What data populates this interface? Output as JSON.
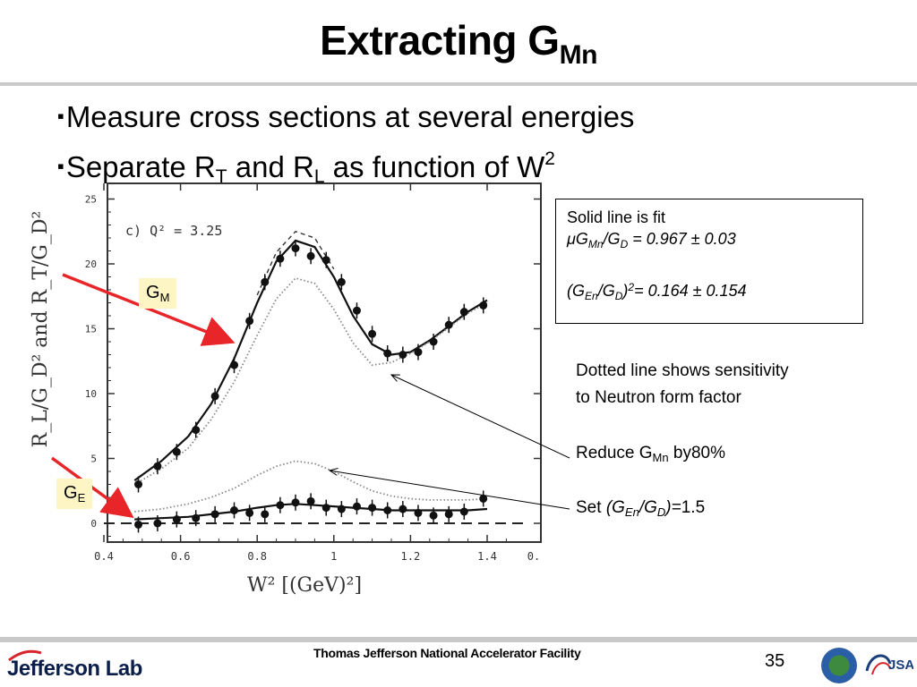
{
  "slide": {
    "title_main": "Extracting G",
    "title_sub": "Mn",
    "bullets": [
      {
        "marker": "▪",
        "text": "Measure cross sections  at several energies"
      },
      {
        "marker": "▪",
        "pre": "Separate R",
        "sub1": "T",
        "mid": " and R",
        "sub2": "L",
        "post": " as function of W",
        "sup": "2"
      }
    ]
  },
  "labels": {
    "gm_main": "G",
    "gm_sub": "M",
    "ge_main": "G",
    "ge_sub": "E"
  },
  "fit_box": {
    "line1": "Solid line is fit",
    "mu": "μG",
    "mn": "Mn",
    "slash": "/G",
    "d": "D",
    "val1": " = 0.967 ± 0.03",
    "open": "(G",
    "en": "En",
    "slash2": "/G",
    "d2": "D",
    "close": ")",
    "sq": "2",
    "val2": "= 0.164 ± 0.154"
  },
  "notes": {
    "dotted_1": "Dotted line shows sensitivity",
    "dotted_2": "to Neutron form factor",
    "reduce_pre": "Reduce G",
    "reduce_sub": "Mn",
    "reduce_post": " by80%",
    "set_pre": "Set  ",
    "set_open": "(G",
    "set_en": "En",
    "set_slash": "/G",
    "set_d": "D",
    "set_close": ")=",
    "set_val": "1.5"
  },
  "footer": {
    "org": "Thomas Jefferson National Accelerator Facility",
    "page": "35",
    "logo_text": "Jefferson Lab",
    "jsa_text": "JSA"
  },
  "colors": {
    "arrow": "#e8262a",
    "label_bg": "#fdf6c4",
    "rule": "#c9c9c9"
  },
  "chart_data": {
    "type": "scatter",
    "panel_label": "c) Q² = 3.25",
    "xlabel": "W² [(GeV)²]",
    "ylabel": "R_L/G_D² and R_T/G_D²",
    "xlim": [
      0.4,
      1.5
    ],
    "ylim": [
      -2,
      26
    ],
    "x_ticks": [
      0.4,
      0.6,
      0.8,
      1,
      1.2,
      1.4
    ],
    "x_tick_labels": [
      "0.4",
      "0.6",
      "0.8",
      "1",
      "1.2",
      "1.4"
    ],
    "extra_x_tick_label": "0.",
    "y_ticks": [
      0,
      5,
      10,
      15,
      20,
      25
    ],
    "y_tick_labels": [
      "0",
      "5",
      "10",
      "15",
      "20",
      "25"
    ],
    "series": [
      {
        "role": "RT data",
        "x": [
          0.49,
          0.54,
          0.59,
          0.64,
          0.69,
          0.74,
          0.78,
          0.82,
          0.86,
          0.9,
          0.94,
          0.98,
          1.02,
          1.06,
          1.1,
          1.14,
          1.18,
          1.22,
          1.26,
          1.3,
          1.34,
          1.39
        ],
        "y": [
          3.0,
          4.4,
          5.5,
          7.2,
          9.8,
          12.2,
          15.6,
          18.6,
          20.4,
          21.2,
          20.6,
          20.3,
          18.6,
          16.4,
          14.6,
          13.1,
          13.0,
          13.2,
          14.0,
          15.3,
          16.3,
          16.8
        ]
      },
      {
        "role": "RL data",
        "x": [
          0.49,
          0.54,
          0.59,
          0.64,
          0.69,
          0.74,
          0.78,
          0.82,
          0.86,
          0.9,
          0.94,
          0.98,
          1.02,
          1.06,
          1.1,
          1.14,
          1.18,
          1.22,
          1.26,
          1.3,
          1.34,
          1.39
        ],
        "y": [
          -0.1,
          0.0,
          0.3,
          0.4,
          0.7,
          1.0,
          0.8,
          0.7,
          1.4,
          1.6,
          1.7,
          1.2,
          1.1,
          1.3,
          1.2,
          1.0,
          1.1,
          0.8,
          0.6,
          0.7,
          0.9,
          1.9
        ]
      },
      {
        "role": "RT fit (solid)",
        "x": [
          0.48,
          0.55,
          0.62,
          0.68,
          0.74,
          0.8,
          0.85,
          0.9,
          0.95,
          1.0,
          1.05,
          1.1,
          1.15,
          1.2,
          1.25,
          1.3,
          1.35,
          1.4
        ],
        "y": [
          3.3,
          4.8,
          6.7,
          9.2,
          12.7,
          17.0,
          20.2,
          21.8,
          21.3,
          19.0,
          16.0,
          13.8,
          13.0,
          13.2,
          14.1,
          15.2,
          16.3,
          17.2
        ]
      },
      {
        "role": "RT dashed",
        "x": [
          0.8,
          0.85,
          0.9,
          0.95,
          1.0
        ],
        "y": [
          17.6,
          20.9,
          22.5,
          22.0,
          19.6
        ]
      },
      {
        "role": "RT dotted (reduced GMn)",
        "x": [
          0.48,
          0.55,
          0.62,
          0.68,
          0.74,
          0.8,
          0.85,
          0.9,
          0.95,
          1.0,
          1.05,
          1.1,
          1.15,
          1.2,
          1.25,
          1.3,
          1.35,
          1.4
        ],
        "y": [
          3.0,
          4.2,
          5.8,
          8.0,
          10.9,
          14.5,
          17.3,
          18.9,
          18.5,
          16.5,
          13.9,
          12.2,
          12.4,
          13.1,
          14.0,
          15.1,
          16.2,
          17.0
        ]
      },
      {
        "role": "RL fit (solid)",
        "x": [
          0.48,
          0.55,
          0.62,
          0.68,
          0.74,
          0.8,
          0.85,
          0.9,
          0.95,
          1.0,
          1.05,
          1.1,
          1.15,
          1.2,
          1.25,
          1.3,
          1.35,
          1.4
        ],
        "y": [
          0.3,
          0.4,
          0.5,
          0.7,
          0.9,
          1.2,
          1.4,
          1.5,
          1.4,
          1.3,
          1.2,
          1.1,
          1.0,
          1.0,
          1.0,
          1.0,
          1.0,
          1.1
        ]
      },
      {
        "role": "RL dotted (GEn/GD = 1.5)",
        "x": [
          0.48,
          0.55,
          0.62,
          0.68,
          0.74,
          0.8,
          0.85,
          0.9,
          0.95,
          1.0,
          1.05,
          1.1,
          1.15,
          1.2,
          1.25,
          1.3,
          1.35,
          1.4
        ],
        "y": [
          0.9,
          1.1,
          1.5,
          2.0,
          2.7,
          3.7,
          4.4,
          4.8,
          4.6,
          4.0,
          3.2,
          2.5,
          2.1,
          1.9,
          1.8,
          1.8,
          1.8,
          1.9
        ]
      },
      {
        "role": "zero line (dashed)",
        "x": [
          0.4,
          1.5
        ],
        "y": [
          0,
          0
        ]
      }
    ]
  }
}
